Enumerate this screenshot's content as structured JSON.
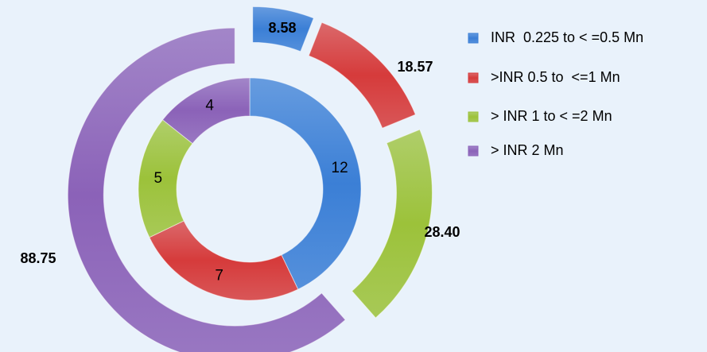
{
  "chart_data": {
    "type": "doughnut",
    "categories": [
      "INR  0.225 to < =0.5 Mn",
      ">INR 0.5 to  <=1 Mn",
      "> INR 1 to < =2 Mn",
      "> INR 2 Mn"
    ],
    "colors": [
      "#3b7fd6",
      "#d63b3b",
      "#9cc23a",
      "#8b62b8"
    ],
    "series": [
      {
        "values": [
          12,
          7,
          5,
          4
        ]
      },
      {
        "values": [
          8.58,
          18.57,
          28.4,
          88.75
        ],
        "value_labels": [
          "8.58",
          "18.57",
          "28.40",
          "88.75"
        ]
      }
    ],
    "legend": "right"
  }
}
